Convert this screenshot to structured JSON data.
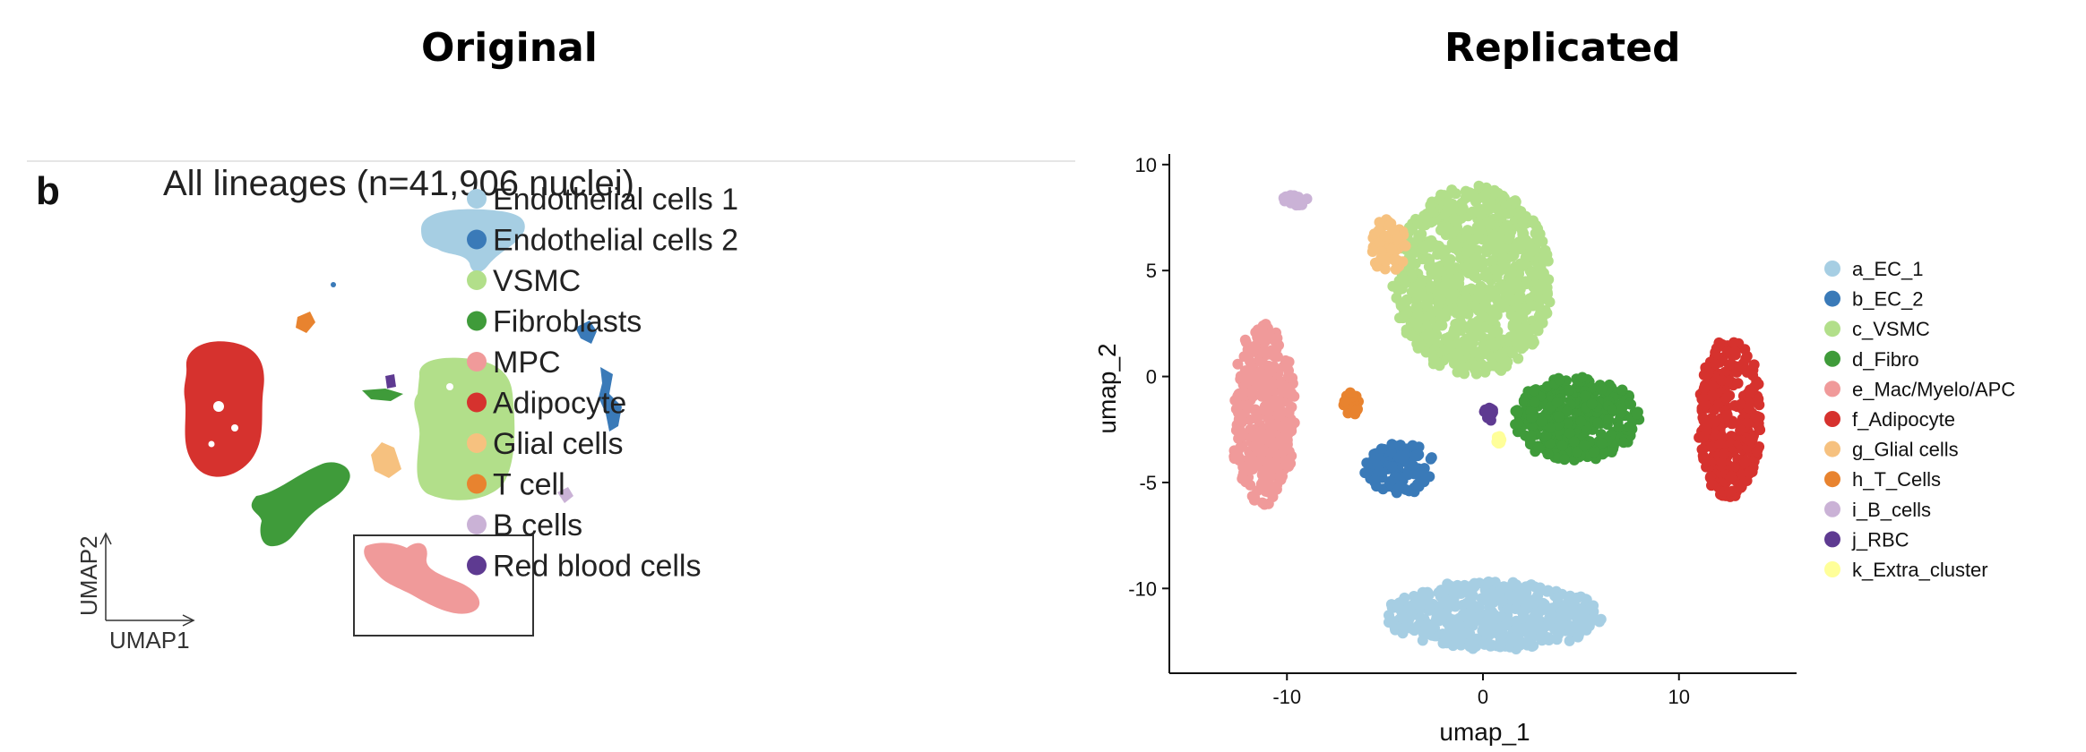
{
  "headings": {
    "left": "Original",
    "right": "Replicated"
  },
  "chart_data": [
    {
      "type": "scatter",
      "panel_letter": "b",
      "title": "All lineages (n=41,906 nuclei)",
      "xlabel": "UMAP1",
      "ylabel": "UMAP2",
      "legend": {
        "placement": "right",
        "entries": [
          {
            "label": "Endothelial cells 1",
            "color": "#a6cee3"
          },
          {
            "label": "Endothelial cells 2",
            "color": "#3a7ab8"
          },
          {
            "label": "VSMC",
            "color": "#b2df8a"
          },
          {
            "label": "Fibroblasts",
            "color": "#3f9b3a"
          },
          {
            "label": "MPC",
            "color": "#f09a9a"
          },
          {
            "label": "Adipocyte",
            "color": "#d6322e"
          },
          {
            "label": "Glial cells",
            "color": "#f6c17f"
          },
          {
            "label": "T cell",
            "color": "#e8832f"
          },
          {
            "label": "B cells",
            "color": "#cab2d6"
          },
          {
            "label": "Red blood cells",
            "color": "#5e3a91"
          }
        ]
      },
      "inset": true
    },
    {
      "type": "scatter",
      "xlabel": "umap_1",
      "ylabel": "umap_2",
      "xlim": [
        -16,
        16
      ],
      "ylim": [
        -14,
        10.5
      ],
      "xticks": [
        -10,
        0,
        10
      ],
      "yticks": [
        -10,
        -5,
        0,
        5,
        10
      ],
      "grid": false,
      "legend": {
        "placement": "right",
        "entries": [
          {
            "label": "a_EC_1",
            "color": "#a6cee3"
          },
          {
            "label": "b_EC_2",
            "color": "#3a7ab8"
          },
          {
            "label": "c_VSMC",
            "color": "#b2df8a"
          },
          {
            "label": "d_Fibro",
            "color": "#3f9b3a"
          },
          {
            "label": "e_Mac/Myelo/APC",
            "color": "#f09a9a"
          },
          {
            "label": "f_Adipocyte",
            "color": "#d6322e"
          },
          {
            "label": "g_Glial cells",
            "color": "#f6c17f"
          },
          {
            "label": "h_T_Cells",
            "color": "#e8832f"
          },
          {
            "label": "i_B_cells",
            "color": "#cab2d6"
          },
          {
            "label": "j_RBC",
            "color": "#5e3a91"
          },
          {
            "label": "k_Extra_cluster",
            "color": "#ffff99"
          }
        ]
      },
      "clusters": [
        {
          "label": "a_EC_1",
          "center": [
            0.5,
            -11.3
          ],
          "extent": [
            5.5,
            1.6
          ]
        },
        {
          "label": "b_EC_2",
          "center": [
            -4.2,
            -4.3
          ],
          "extent": [
            1.8,
            1.2
          ]
        },
        {
          "label": "c_VSMC",
          "center": [
            -0.5,
            4.5
          ],
          "extent": [
            4.0,
            4.5
          ]
        },
        {
          "label": "d_Fibro",
          "center": [
            4.8,
            -2.0
          ],
          "extent": [
            3.2,
            2.0
          ]
        },
        {
          "label": "e_Mac/Myelo/APC",
          "center": [
            -11.2,
            -1.8
          ],
          "extent": [
            1.6,
            4.2
          ]
        },
        {
          "label": "f_Adipocyte",
          "center": [
            12.6,
            -2.0
          ],
          "extent": [
            1.6,
            3.8
          ]
        },
        {
          "label": "g_Glial cells",
          "center": [
            -4.8,
            6.2
          ],
          "extent": [
            0.9,
            1.3
          ]
        },
        {
          "label": "h_T_Cells",
          "center": [
            -6.7,
            -1.3
          ],
          "extent": [
            0.5,
            0.6
          ]
        },
        {
          "label": "i_B_cells",
          "center": [
            -9.6,
            8.3
          ],
          "extent": [
            0.6,
            0.3
          ]
        },
        {
          "label": "j_RBC",
          "center": [
            0.3,
            -1.7
          ],
          "extent": [
            0.2,
            0.3
          ]
        },
        {
          "label": "k_Extra_cluster",
          "center": [
            0.8,
            -3.0
          ],
          "extent": [
            0.1,
            0.2
          ]
        }
      ]
    }
  ]
}
